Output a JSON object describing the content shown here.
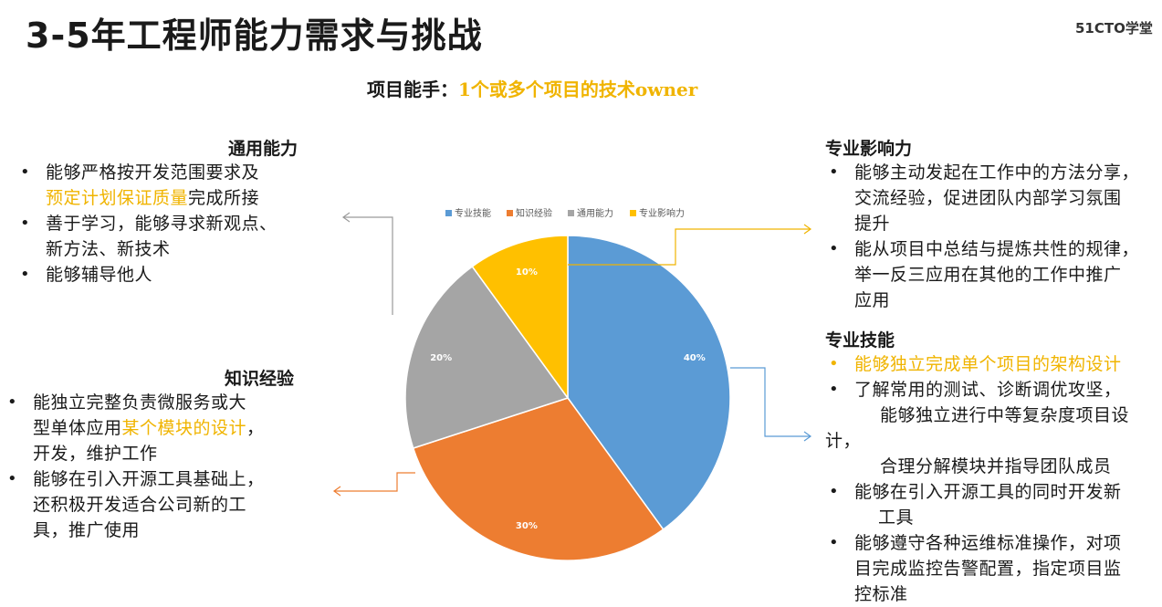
{
  "header": {
    "title": "3-5年工程师能力需求与挑战",
    "logo": "51CTO学堂"
  },
  "subtitle": {
    "prefix": "项目能手：",
    "highlight": "1个或多个项目的技术owner"
  },
  "sections": {
    "general": {
      "title": "通用能力",
      "l1a": "能够严格按开发范围要求及",
      "l1b_hl": "预定计划保证质量",
      "l1b_rest": "完成所接",
      "l2a": "善于学习，能够寻求新观点、",
      "l2b": "新方法、新技术",
      "l3": "能够辅导他人"
    },
    "knowledge": {
      "title": "知识经验",
      "l1a": "能独立完整负责微服务或大",
      "l1b_pre": "型单体应用",
      "l1b_hl": "某个模块的设计",
      "l1b_post": "，",
      "l1c": "开发，维护工作",
      "l2a": "能够在引入开源工具基础上，",
      "l2b": "还积极开发适合公司新的工",
      "l2c": "具，推广使用"
    },
    "influence": {
      "title": "专业影响力",
      "l1a": "能够主动发起在工作中的方法分享，",
      "l1b": "交流经验，促进团队内部学习氛围",
      "l1c": "提升",
      "l2a": "能从项目中总结与提炼共性的规律，",
      "l2b": "举一反三应用在其他的工作中推广",
      "l2c": "应用"
    },
    "skills": {
      "title": "专业技能",
      "l1": "能够独立完成单个项目的架构设计",
      "l2": "了解常用的测试、诊断调优攻坚，",
      "l3a": "能够独立进行中等复杂度项目设",
      "l3b": "计，",
      "l4": "合理分解模块并指导团队成员",
      "l5a": "能够在引入开源工具的同时开发新",
      "l5b": "工具",
      "l6a": "能够遵守各种运维标准操作，对项",
      "l6b": "目完成监控告警配置，指定项目监",
      "l6c": "控标准"
    }
  },
  "chart_data": {
    "type": "pie",
    "categories": [
      "专业技能",
      "知识经验",
      "通用能力",
      "专业影响力"
    ],
    "values": [
      40,
      30,
      20,
      10
    ],
    "labels": [
      "40%",
      "30%",
      "20%",
      "10%"
    ],
    "colors": [
      "#5b9bd5",
      "#ed7d31",
      "#a5a5a5",
      "#ffc000"
    ],
    "legend": "top",
    "start_angle": "12 o'clock",
    "direction": "clockwise"
  }
}
